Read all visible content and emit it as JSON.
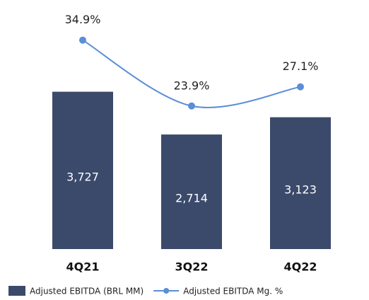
{
  "chart_data": {
    "type": "bar",
    "categories": [
      "4Q21",
      "3Q22",
      "4Q22"
    ],
    "series": [
      {
        "name": "Adjusted EBITDA (BRL MM)",
        "type": "bar",
        "color": "#3b4a6b",
        "values": [
          3727,
          2714,
          3123
        ],
        "value_labels": [
          "3,727",
          "2,714",
          "3,123"
        ]
      },
      {
        "name": "Adjusted EBITDA Mg. %",
        "type": "line",
        "axis": "y2",
        "color": "#5b8ed6",
        "values": [
          34.9,
          23.9,
          27.1
        ],
        "value_labels": [
          "34.9%",
          "23.9%",
          "27.1%"
        ]
      }
    ],
    "ylim": [
      0,
      5900
    ],
    "y2lim": [
      0,
      41.6
    ]
  }
}
